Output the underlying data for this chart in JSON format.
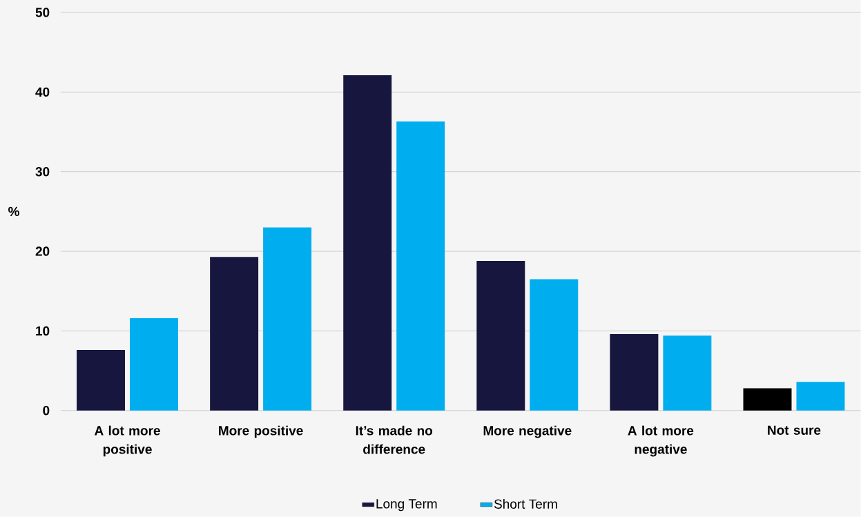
{
  "chart_data": {
    "type": "bar",
    "ylabel": "%",
    "categories": [
      "A lot more positive",
      "More positive",
      "It’s made no difference",
      "More negative",
      "A lot more negative",
      "Not sure"
    ],
    "series": [
      {
        "name": "Long Term",
        "color": "#16163f",
        "colors": [
          "#16163f",
          "#16163f",
          "#16163f",
          "#16163f",
          "#16163f",
          "#000000"
        ],
        "values": [
          7.6,
          19.3,
          42.1,
          18.8,
          9.6,
          2.8
        ]
      },
      {
        "name": "Short Term",
        "color": "#00aeef",
        "values": [
          11.6,
          23.0,
          36.3,
          16.5,
          9.4,
          3.6
        ]
      }
    ],
    "ylim": [
      0,
      50
    ],
    "yticks": [
      0,
      10,
      20,
      30,
      40,
      50
    ],
    "grid": "y",
    "legend": "bottom"
  }
}
